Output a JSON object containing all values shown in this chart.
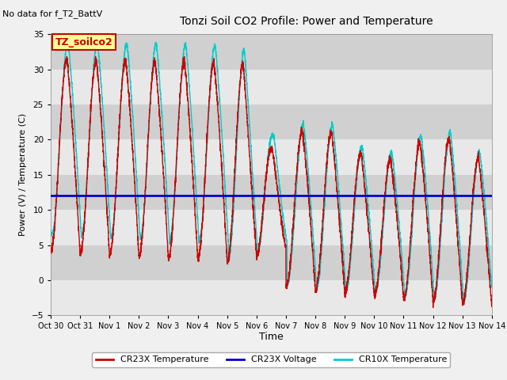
{
  "title": "Tonzi Soil CO2 Profile: Power and Temperature",
  "subtitle": "No data for f_T2_BattV",
  "ylabel": "Power (V) / Temperature (C)",
  "xlabel": "Time",
  "ylim": [
    -5,
    35
  ],
  "yticks": [
    -5,
    0,
    5,
    10,
    15,
    20,
    25,
    30,
    35
  ],
  "xtick_labels": [
    "Oct 30",
    "Oct 31",
    "Nov 1",
    "Nov 2",
    "Nov 3",
    "Nov 4",
    "Nov 5",
    "Nov 6",
    "Nov 7",
    "Nov 8",
    "Nov 9",
    "Nov 10",
    "Nov 11",
    "Nov 12",
    "Nov 13",
    "Nov 14"
  ],
  "num_days": 15,
  "voltage_value": 12.0,
  "cr23x_color": "#cc0000",
  "cr10x_color": "#00cccc",
  "voltage_color": "#0000cc",
  "legend_box_color": "#ffff99",
  "legend_box_border": "#cc0000",
  "annotation_label": "TZ_soilco2",
  "band_light": "#e8e8e8",
  "band_dark": "#d0d0d0",
  "fig_bg": "#f0f0f0"
}
